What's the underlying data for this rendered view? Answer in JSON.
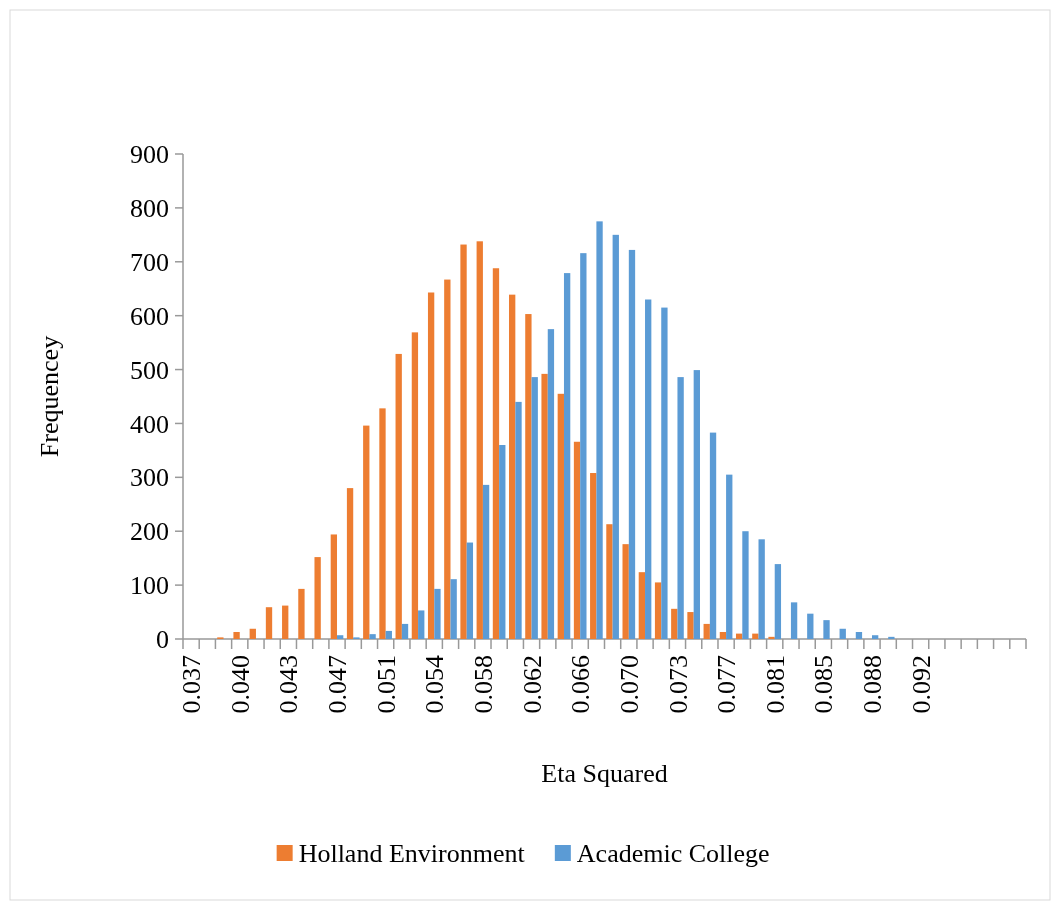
{
  "chart_data": {
    "type": "bar",
    "xlabel": "Eta Squared",
    "ylabel": "Frequencey",
    "categories": [
      "0.037",
      null,
      null,
      "0.040",
      null,
      null,
      "0.043",
      null,
      null,
      "0.047",
      null,
      null,
      "0.051",
      null,
      null,
      "0.054",
      null,
      null,
      "0.058",
      null,
      null,
      "0.062",
      null,
      null,
      "0.066",
      null,
      null,
      "0.070",
      null,
      null,
      "0.073",
      null,
      null,
      "0.077",
      null,
      null,
      "0.081",
      null,
      null,
      "0.085",
      null,
      null,
      "0.088",
      null,
      null,
      "0.092",
      null,
      null,
      null,
      null,
      null,
      null
    ],
    "series": [
      {
        "name": "Holland Environment",
        "color": "#ed7d31",
        "values": [
          0,
          0,
          3,
          13,
          19,
          59,
          62,
          93,
          152,
          194,
          280,
          396,
          428,
          529,
          569,
          643,
          667,
          732,
          738,
          688,
          639,
          603,
          492,
          455,
          366,
          308,
          213,
          176,
          124,
          105,
          56,
          50,
          28,
          13,
          10,
          10,
          4,
          0,
          0,
          0,
          0,
          0,
          0,
          0,
          0,
          0,
          0,
          0,
          0,
          0,
          0,
          0
        ]
      },
      {
        "name": "Academic College",
        "color": "#5b9bd5",
        "values": [
          0,
          0,
          0,
          0,
          0,
          0,
          0,
          0,
          0,
          7,
          3,
          9,
          15,
          28,
          53,
          93,
          111,
          179,
          286,
          360,
          440,
          486,
          575,
          679,
          716,
          775,
          750,
          722,
          630,
          615,
          486,
          499,
          383,
          305,
          200,
          185,
          139,
          68,
          47,
          35,
          19,
          13,
          7,
          4,
          0,
          0,
          0,
          0,
          0,
          0,
          0,
          0
        ]
      }
    ],
    "ylim": [
      0,
      900
    ],
    "yticks": [
      0,
      100,
      200,
      300,
      400,
      500,
      600,
      700,
      800,
      900
    ],
    "legend": "bottom"
  }
}
